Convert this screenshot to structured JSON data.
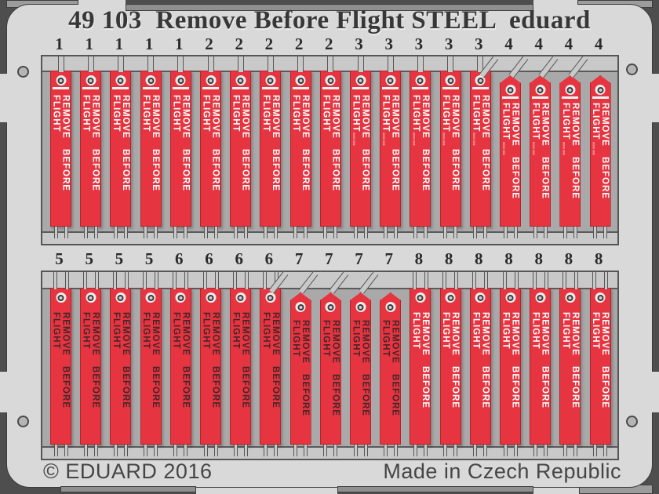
{
  "header": {
    "title": "49 103  Remove Before Flight STEEL  eduard"
  },
  "footer": {
    "copyright": "© EDUARD 2016",
    "made_in": "Made in Czech Republic"
  },
  "streamer": {
    "text": "REMOVE BEFORE FLIGHT",
    "fine_print": "IIIIIIIII IIIIIII"
  },
  "colors": {
    "flag_red": "#e63540",
    "flag_edge": "#b3242c",
    "plate_steel": "#d9d9d9",
    "panel_steel": "#a9a9a9",
    "background": "#4e4e4e",
    "ink_white": "#ffffff",
    "ink_dark": "#42262a"
  },
  "rows": [
    {
      "name": "row-1",
      "streamers": [
        {
          "num": "1",
          "shape": "flat",
          "ink": "white",
          "stripe": true,
          "fine": false
        },
        {
          "num": "1",
          "shape": "flat",
          "ink": "white",
          "stripe": true,
          "fine": false
        },
        {
          "num": "1",
          "shape": "flat",
          "ink": "white",
          "stripe": true,
          "fine": false
        },
        {
          "num": "1",
          "shape": "flat",
          "ink": "white",
          "stripe": true,
          "fine": false
        },
        {
          "num": "1",
          "shape": "flat",
          "ink": "white",
          "stripe": true,
          "fine": false
        },
        {
          "num": "2",
          "shape": "flat",
          "ink": "white",
          "stripe": true,
          "fine": false
        },
        {
          "num": "2",
          "shape": "flat",
          "ink": "white",
          "stripe": true,
          "fine": false
        },
        {
          "num": "2",
          "shape": "flat",
          "ink": "white",
          "stripe": true,
          "fine": false
        },
        {
          "num": "2",
          "shape": "flat",
          "ink": "white",
          "stripe": true,
          "fine": false
        },
        {
          "num": "2",
          "shape": "flat",
          "ink": "white",
          "stripe": true,
          "fine": false
        },
        {
          "num": "3",
          "shape": "flat",
          "ink": "white",
          "stripe": true,
          "fine": true
        },
        {
          "num": "3",
          "shape": "flat",
          "ink": "white",
          "stripe": true,
          "fine": true
        },
        {
          "num": "3",
          "shape": "flat",
          "ink": "white",
          "stripe": true,
          "fine": true
        },
        {
          "num": "3",
          "shape": "flat",
          "ink": "white",
          "stripe": true,
          "fine": true
        },
        {
          "num": "3",
          "shape": "flat",
          "ink": "white",
          "stripe": true,
          "fine": true
        },
        {
          "num": "4",
          "shape": "pointed",
          "ink": "white",
          "stripe": true,
          "fine": true
        },
        {
          "num": "4",
          "shape": "pointed",
          "ink": "white",
          "stripe": true,
          "fine": true
        },
        {
          "num": "4",
          "shape": "pointed",
          "ink": "white",
          "stripe": true,
          "fine": true
        },
        {
          "num": "4",
          "shape": "pointed",
          "ink": "white",
          "stripe": true,
          "fine": true
        }
      ]
    },
    {
      "name": "row-2",
      "streamers": [
        {
          "num": "5",
          "shape": "flat",
          "ink": "dark",
          "stripe": false,
          "fine": false
        },
        {
          "num": "5",
          "shape": "flat",
          "ink": "dark",
          "stripe": false,
          "fine": false
        },
        {
          "num": "5",
          "shape": "flat",
          "ink": "dark",
          "stripe": false,
          "fine": false
        },
        {
          "num": "5",
          "shape": "flat",
          "ink": "dark",
          "stripe": false,
          "fine": false
        },
        {
          "num": "6",
          "shape": "flat",
          "ink": "dark",
          "stripe": false,
          "fine": false
        },
        {
          "num": "6",
          "shape": "flat",
          "ink": "dark",
          "stripe": false,
          "fine": false
        },
        {
          "num": "6",
          "shape": "flat",
          "ink": "dark",
          "stripe": false,
          "fine": false
        },
        {
          "num": "6",
          "shape": "flat",
          "ink": "dark",
          "stripe": false,
          "fine": false
        },
        {
          "num": "7",
          "shape": "pointed",
          "ink": "dark",
          "stripe": false,
          "fine": false
        },
        {
          "num": "7",
          "shape": "pointed",
          "ink": "dark",
          "stripe": false,
          "fine": false
        },
        {
          "num": "7",
          "shape": "pointed",
          "ink": "dark",
          "stripe": false,
          "fine": false
        },
        {
          "num": "7",
          "shape": "pointed",
          "ink": "dark",
          "stripe": false,
          "fine": false
        },
        {
          "num": "8",
          "shape": "flat",
          "ink": "white",
          "stripe": false,
          "fine": false
        },
        {
          "num": "8",
          "shape": "flat",
          "ink": "white",
          "stripe": false,
          "fine": false
        },
        {
          "num": "8",
          "shape": "flat",
          "ink": "white",
          "stripe": false,
          "fine": false
        },
        {
          "num": "8",
          "shape": "flat",
          "ink": "white",
          "stripe": false,
          "fine": false
        },
        {
          "num": "8",
          "shape": "flat",
          "ink": "white",
          "stripe": false,
          "fine": false
        },
        {
          "num": "8",
          "shape": "flat",
          "ink": "white",
          "stripe": false,
          "fine": false
        },
        {
          "num": "8",
          "shape": "flat",
          "ink": "white",
          "stripe": false,
          "fine": false
        }
      ]
    }
  ]
}
